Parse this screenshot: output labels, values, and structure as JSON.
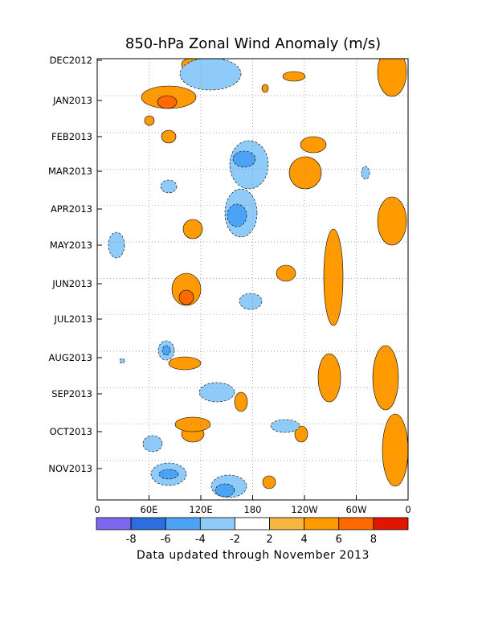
{
  "chart_data": {
    "type": "heatmap",
    "title": "850-hPa Zonal Wind Anomaly (m/s)",
    "xlabel": "",
    "ylabel": "",
    "x_ticks": [
      "0",
      "60E",
      "120E",
      "180",
      "120W",
      "60W",
      "0"
    ],
    "x_range_deg_east": [
      0,
      360
    ],
    "y_ticks": [
      "DEC2012",
      "JAN2013",
      "FEB2013",
      "MAR2013",
      "APR2013",
      "MAY2013",
      "JUN2013",
      "JUL2013",
      "AUG2013",
      "SEP2013",
      "OCT2013",
      "NOV2013"
    ],
    "y_range": [
      "DEC2012",
      "NOV2013"
    ],
    "y_direction": "top-to-bottom",
    "grid": true,
    "contour_interval": 2,
    "colorbar": {
      "position": "bottom",
      "levels": [
        -10,
        -8,
        -6,
        -4,
        -2,
        2,
        4,
        6,
        8,
        10
      ],
      "tick_labels": [
        "-8",
        "-6",
        "-4",
        "-2",
        "2",
        "4",
        "6",
        "8"
      ],
      "colors": [
        "#7b68ee",
        "#2a6ee0",
        "#4ca3f5",
        "#8ecbf8",
        "#ffffff",
        "#f8b640",
        "#ff9a00",
        "#ff6a00",
        "#e01600"
      ]
    },
    "anomaly_regions": [
      {
        "lon": 240,
        "lat": 80,
        "lon_span": 14,
        "lat_span": 8,
        "value": 4
      },
      {
        "lon": 240,
        "lat": 540,
        "lon_span": 14,
        "lat_span": 10,
        "value": 4
      },
      {
        "lon": 210,
        "lat": 121,
        "lon_span": 34,
        "lat_span": 14,
        "value": 4
      },
      {
        "lon": 208,
        "lat": 127,
        "lon_span": 12,
        "lat_span": 8,
        "value": 6
      },
      {
        "lon": 210,
        "lat": 170,
        "lon_span": 9,
        "lat_span": 8,
        "value": 4
      },
      {
        "lon": 186,
        "lat": 150,
        "lon_span": 6,
        "lat_span": 6,
        "value": 4
      },
      {
        "lon": 232,
        "lat": 360,
        "lon_span": 18,
        "lat_span": 20,
        "value": 4
      },
      {
        "lon": 232,
        "lat": 370,
        "lon_span": 9,
        "lat_span": 9,
        "value": 6
      },
      {
        "lon": 240,
        "lat": 285,
        "lon_span": 12,
        "lat_span": 12,
        "value": 4
      },
      {
        "lon": 230,
        "lat": 452,
        "lon_span": 20,
        "lat_span": 8,
        "value": 4
      },
      {
        "lon": 240,
        "lat": 528,
        "lon_span": 22,
        "lat_span": 9,
        "value": 4
      },
      {
        "lon": 330,
        "lat": 110,
        "lon_span": 4,
        "lat_span": 5,
        "value": 4
      },
      {
        "lon": 366,
        "lat": 95,
        "lon_span": 14,
        "lat_span": 6,
        "value": 4
      },
      {
        "lon": 356,
        "lat": 340,
        "lon_span": 12,
        "lat_span": 10,
        "value": 4
      },
      {
        "lon": 390,
        "lat": 180,
        "lon_span": 16,
        "lat_span": 10,
        "value": 4
      },
      {
        "lon": 380,
        "lat": 215,
        "lon_span": 20,
        "lat_span": 20,
        "value": 4
      },
      {
        "lon": 415,
        "lat": 345,
        "lon_span": 12,
        "lat_span": 60,
        "value": 4
      },
      {
        "lon": 410,
        "lat": 470,
        "lon_span": 14,
        "lat_span": 30,
        "value": 4
      },
      {
        "lon": 488,
        "lat": 90,
        "lon_span": 18,
        "lat_span": 30,
        "value": 4
      },
      {
        "lon": 488,
        "lat": 275,
        "lon_span": 18,
        "lat_span": 30,
        "value": 4
      },
      {
        "lon": 480,
        "lat": 470,
        "lon_span": 16,
        "lat_span": 40,
        "value": 4
      },
      {
        "lon": 492,
        "lat": 560,
        "lon_span": 16,
        "lat_span": 45,
        "value": 4
      },
      {
        "lon": 300,
        "lat": 500,
        "lon_span": 8,
        "lat_span": 12,
        "value": 4
      },
      {
        "lon": 375,
        "lat": 540,
        "lon_span": 8,
        "lat_span": 10,
        "value": 4
      },
      {
        "lon": 335,
        "lat": 600,
        "lon_span": 8,
        "lat_span": 8,
        "value": 4
      },
      {
        "lon": 262,
        "lat": 92,
        "lon_span": 38,
        "lat_span": 20,
        "value": -4
      },
      {
        "lon": 310,
        "lat": 205,
        "lon_span": 24,
        "lat_span": 30,
        "value": -4
      },
      {
        "lon": 304,
        "lat": 198,
        "lon_span": 14,
        "lat_span": 10,
        "value": -6
      },
      {
        "lon": 300,
        "lat": 265,
        "lon_span": 20,
        "lat_span": 30,
        "value": -4
      },
      {
        "lon": 295,
        "lat": 268,
        "lon_span": 12,
        "lat_span": 14,
        "value": -6
      },
      {
        "lon": 145,
        "lat": 305,
        "lon_span": 10,
        "lat_span": 16,
        "value": -4
      },
      {
        "lon": 210,
        "lat": 232,
        "lon_span": 10,
        "lat_span": 8,
        "value": -4
      },
      {
        "lon": 207,
        "lat": 436,
        "lon_span": 10,
        "lat_span": 12,
        "value": -4
      },
      {
        "lon": 207,
        "lat": 436,
        "lon_span": 5,
        "lat_span": 6,
        "value": -6
      },
      {
        "lon": 312,
        "lat": 375,
        "lon_span": 14,
        "lat_span": 10,
        "value": -4
      },
      {
        "lon": 270,
        "lat": 488,
        "lon_span": 22,
        "lat_span": 12,
        "value": -4
      },
      {
        "lon": 355,
        "lat": 530,
        "lon_span": 18,
        "lat_span": 8,
        "value": -4
      },
      {
        "lon": 190,
        "lat": 552,
        "lon_span": 12,
        "lat_span": 10,
        "value": -4
      },
      {
        "lon": 210,
        "lat": 590,
        "lon_span": 22,
        "lat_span": 14,
        "value": -4
      },
      {
        "lon": 210,
        "lat": 590,
        "lon_span": 12,
        "lat_span": 6,
        "value": -6
      },
      {
        "lon": 285,
        "lat": 605,
        "lon_span": 22,
        "lat_span": 14,
        "value": -4
      },
      {
        "lon": 280,
        "lat": 610,
        "lon_span": 12,
        "lat_span": 8,
        "value": -6
      },
      {
        "lon": 455,
        "lat": 215,
        "lon_span": 5,
        "lat_span": 8,
        "value": -4
      },
      {
        "lon": 152,
        "lat": 449,
        "lon_span": 3,
        "lat_span": 3,
        "value": -4
      }
    ]
  },
  "footer": {
    "note": "Data updated through November 2013"
  }
}
